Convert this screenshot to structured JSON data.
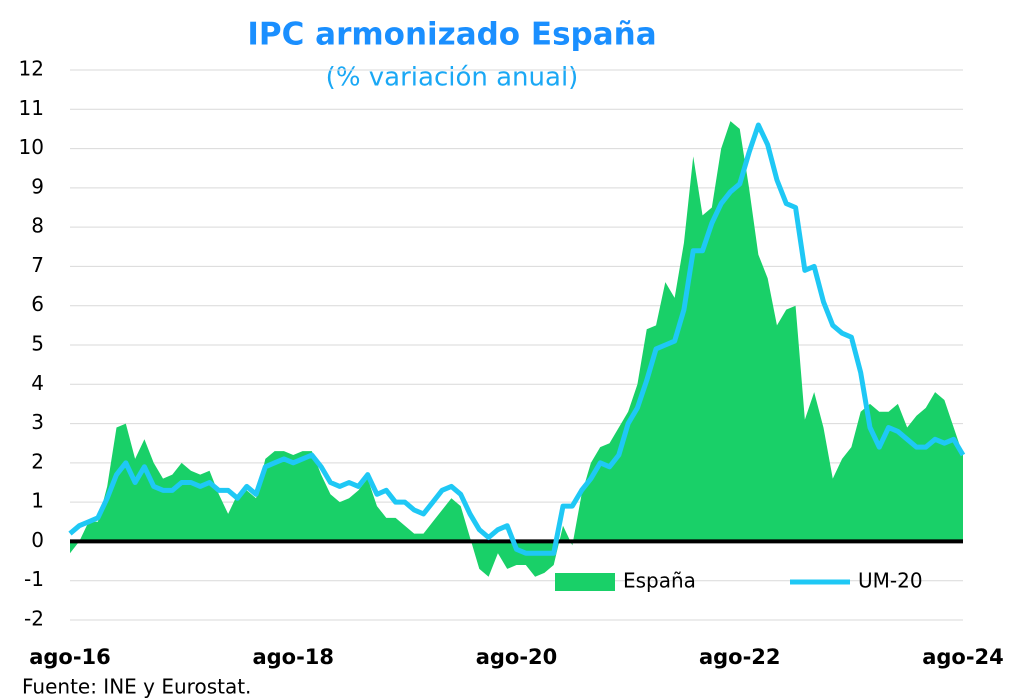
{
  "chart_data": {
    "type": "area-line",
    "title": "IPC armonizado España",
    "subtitle": "(% variación anual)",
    "source": "Fuente: INE y Eurostat.",
    "categories": [
      "ago-16",
      null,
      null,
      null,
      null,
      null,
      null,
      null,
      null,
      null,
      null,
      null,
      null,
      null,
      null,
      null,
      null,
      null,
      null,
      null,
      null,
      null,
      null,
      null,
      "ago-18",
      null,
      null,
      null,
      null,
      null,
      null,
      null,
      null,
      null,
      null,
      null,
      null,
      null,
      null,
      null,
      null,
      null,
      null,
      null,
      null,
      null,
      null,
      null,
      "ago-20",
      null,
      null,
      null,
      null,
      null,
      null,
      null,
      null,
      null,
      null,
      null,
      null,
      null,
      null,
      null,
      null,
      null,
      null,
      null,
      null,
      null,
      null,
      null,
      "ago-22",
      null,
      null,
      null,
      null,
      null,
      null,
      null,
      null,
      null,
      null,
      null,
      null,
      null,
      null,
      null,
      null,
      null,
      null,
      null,
      null,
      null,
      null,
      null,
      "ago-24"
    ],
    "series": [
      {
        "name": "España",
        "color": "#19d068",
        "style": "area",
        "values": [
          -0.3,
          0.0,
          0.5,
          0.5,
          1.4,
          2.9,
          3.0,
          2.1,
          2.6,
          2.0,
          1.6,
          1.7,
          2.0,
          1.8,
          1.7,
          1.8,
          1.2,
          0.7,
          1.2,
          1.3,
          1.1,
          2.1,
          2.3,
          2.3,
          2.2,
          2.3,
          2.3,
          1.7,
          1.2,
          1.0,
          1.1,
          1.3,
          1.6,
          0.9,
          0.6,
          0.6,
          0.4,
          0.2,
          0.2,
          0.5,
          0.8,
          1.1,
          0.9,
          0.1,
          -0.7,
          -0.9,
          -0.3,
          -0.7,
          -0.6,
          -0.6,
          -0.9,
          -0.8,
          -0.6,
          0.4,
          -0.1,
          1.2,
          2.0,
          2.4,
          2.5,
          2.9,
          3.3,
          4.0,
          5.4,
          5.5,
          6.6,
          6.2,
          7.6,
          9.8,
          8.3,
          8.5,
          10.0,
          10.7,
          10.5,
          9.0,
          7.3,
          6.7,
          5.5,
          5.9,
          6.0,
          3.1,
          3.8,
          2.9,
          1.6,
          2.1,
          2.4,
          3.3,
          3.5,
          3.3,
          3.3,
          3.5,
          2.9,
          3.2,
          3.4,
          3.8,
          3.6,
          2.9,
          2.2
        ]
      },
      {
        "name": "UM-20",
        "color": "#1fc8f5",
        "style": "line",
        "values": [
          0.2,
          0.4,
          0.5,
          0.6,
          1.1,
          1.7,
          2.0,
          1.5,
          1.9,
          1.4,
          1.3,
          1.3,
          1.5,
          1.5,
          1.4,
          1.5,
          1.3,
          1.3,
          1.1,
          1.4,
          1.2,
          1.9,
          2.0,
          2.1,
          2.0,
          2.1,
          2.2,
          1.9,
          1.5,
          1.4,
          1.5,
          1.4,
          1.7,
          1.2,
          1.3,
          1.0,
          1.0,
          0.8,
          0.7,
          1.0,
          1.3,
          1.4,
          1.2,
          0.7,
          0.3,
          0.1,
          0.3,
          0.4,
          -0.2,
          -0.3,
          -0.3,
          -0.3,
          -0.3,
          0.9,
          0.9,
          1.3,
          1.6,
          2.0,
          1.9,
          2.2,
          3.0,
          3.4,
          4.1,
          4.9,
          5.0,
          5.1,
          5.9,
          7.4,
          7.4,
          8.1,
          8.6,
          8.9,
          9.1,
          9.9,
          10.6,
          10.1,
          9.2,
          8.6,
          8.5,
          6.9,
          7.0,
          6.1,
          5.5,
          5.3,
          5.2,
          4.3,
          2.9,
          2.4,
          2.9,
          2.8,
          2.6,
          2.4,
          2.4,
          2.6,
          2.5,
          2.6,
          2.2
        ]
      }
    ],
    "ylim": [
      -2,
      12
    ],
    "yticks": [
      -2,
      -1,
      0,
      1,
      2,
      3,
      4,
      5,
      6,
      7,
      8,
      9,
      10,
      11,
      12
    ],
    "grid": true,
    "legend": "lower right"
  }
}
